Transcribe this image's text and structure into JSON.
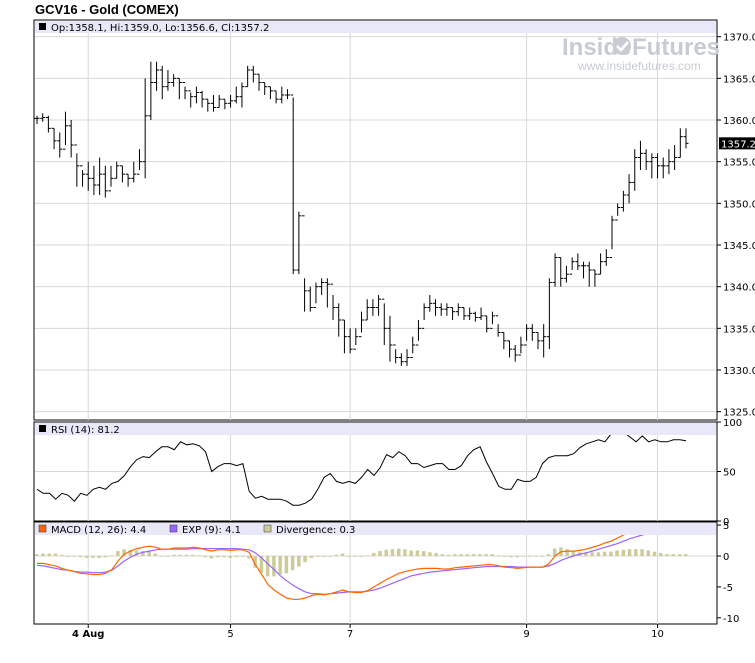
{
  "chart_title": "GCV16 - Gold (COMEX)",
  "watermark": {
    "brand_left": "Inside",
    "brand_right": "Futures",
    "url": "www.insidefutures.com"
  },
  "colors": {
    "price": "#000000",
    "rsi": "#000000",
    "macd": "#ff6600",
    "exp": "#9966ff",
    "divergence": "#cccc99",
    "legend_bg": "#e8e8f8",
    "grid": "#d8d8d8"
  },
  "chart_data": [
    {
      "type": "ohlc",
      "legend": "Op:1358.1, Hi:1359.0, Lo:1356.6, Cl:1357.2",
      "last_value_label": "1357.2",
      "ylim": [
        1324,
        1372
      ],
      "y_ticks": [
        "1325.0",
        "1330.0",
        "1335.0",
        "1340.0",
        "1345.0",
        "1350.0",
        "1355.0",
        "1360.0",
        "1365.0",
        "1370.0"
      ],
      "x_ticks": [
        "4 Aug",
        "5",
        "7",
        "9",
        "10"
      ],
      "close": [
        1360.2,
        1360.3,
        1359.0,
        1357.5,
        1356.5,
        1359.3,
        1357.0,
        1354.5,
        1353.5,
        1353.0,
        1352.2,
        1353.5,
        1351.5,
        1353.0,
        1354.5,
        1353.5,
        1353.0,
        1353.5,
        1355.0,
        1360.5,
        1364.5,
        1366.0,
        1364.0,
        1364.5,
        1365.0,
        1364.5,
        1363.5,
        1362.8,
        1363.3,
        1362.5,
        1362.0,
        1361.5,
        1362.5,
        1362.0,
        1362.3,
        1362.8,
        1364.0,
        1366.0,
        1365.5,
        1364.5,
        1364.0,
        1363.5,
        1362.5,
        1363.0,
        1363.0,
        1342.0,
        1348.5,
        1339.5,
        1337.5,
        1340.0,
        1340.5,
        1340.3,
        1337.5,
        1336.0,
        1334.0,
        1332.5,
        1334.0,
        1336.0,
        1337.5,
        1337.5,
        1338.5,
        1335.0,
        1333.0,
        1331.5,
        1331.0,
        1331.5,
        1333.0,
        1335.0,
        1337.5,
        1338.0,
        1337.5,
        1337.3,
        1337.5,
        1337.0,
        1337.5,
        1336.5,
        1336.8,
        1336.3,
        1336.5,
        1335.0,
        1336.5,
        1334.5,
        1333.5,
        1332.5,
        1331.8,
        1333.0,
        1335.0,
        1334.5,
        1333.5,
        1334.0,
        1340.5,
        1343.5,
        1341.0,
        1341.5,
        1343.0,
        1342.5,
        1342.5,
        1342.0,
        1341.5,
        1343.0,
        1343.5,
        1348.0,
        1349.5,
        1351.0,
        1352.5,
        1355.5,
        1356.0,
        1355.0,
        1355.5,
        1354.5,
        1354.5,
        1355.0,
        1355.5,
        1358.0,
        1357.2
      ],
      "high": [
        1360.5,
        1360.8,
        1360.5,
        1359.0,
        1358.5,
        1361.0,
        1360.0,
        1356.0,
        1354.0,
        1355.0,
        1354.5,
        1355.5,
        1354.5,
        1354.5,
        1355.0,
        1354.5,
        1353.5,
        1355.0,
        1356.5,
        1365.0,
        1367.0,
        1367.0,
        1366.5,
        1366.0,
        1365.5,
        1365.0,
        1364.0,
        1363.3,
        1364.0,
        1363.5,
        1362.5,
        1363.0,
        1363.0,
        1362.5,
        1363.0,
        1364.0,
        1364.5,
        1366.5,
        1366.5,
        1365.5,
        1364.5,
        1364.0,
        1363.5,
        1364.0,
        1363.7,
        1362.7,
        1349.0,
        1341.0,
        1340.0,
        1340.5,
        1341.0,
        1341.0,
        1339.0,
        1338.0,
        1336.0,
        1335.0,
        1335.0,
        1337.0,
        1338.5,
        1338.5,
        1339.0,
        1338.0,
        1336.5,
        1332.5,
        1332.0,
        1332.5,
        1334.0,
        1336.0,
        1338.0,
        1339.0,
        1338.5,
        1338.0,
        1338.0,
        1337.5,
        1338.0,
        1337.5,
        1337.5,
        1337.0,
        1337.5,
        1336.5,
        1337.0,
        1335.5,
        1334.5,
        1333.5,
        1333.0,
        1334.0,
        1335.5,
        1335.5,
        1334.5,
        1335.5,
        1341.0,
        1344.0,
        1343.5,
        1342.5,
        1343.5,
        1344.0,
        1343.0,
        1343.0,
        1342.0,
        1344.0,
        1344.5,
        1348.5,
        1350.0,
        1351.5,
        1353.5,
        1356.5,
        1357.5,
        1356.5,
        1356.0,
        1356.0,
        1355.5,
        1356.5,
        1357.0,
        1359.0,
        1359.0
      ],
      "low": [
        1359.5,
        1359.8,
        1358.5,
        1356.5,
        1355.5,
        1357.0,
        1355.5,
        1352.0,
        1352.0,
        1351.5,
        1351.0,
        1351.0,
        1350.7,
        1352.0,
        1353.0,
        1352.5,
        1352.0,
        1352.5,
        1354.0,
        1353.0,
        1360.0,
        1363.5,
        1362.5,
        1363.5,
        1364.0,
        1362.5,
        1362.5,
        1361.5,
        1362.0,
        1361.5,
        1361.0,
        1361.0,
        1361.5,
        1361.3,
        1361.5,
        1362.0,
        1361.5,
        1364.0,
        1364.5,
        1363.5,
        1363.0,
        1362.5,
        1362.0,
        1362.0,
        1362.5,
        1341.5,
        1341.5,
        1337.0,
        1337.0,
        1338.0,
        1339.0,
        1337.5,
        1336.0,
        1334.0,
        1332.0,
        1332.0,
        1333.0,
        1334.5,
        1336.0,
        1336.5,
        1336.5,
        1333.0,
        1331.0,
        1330.8,
        1330.5,
        1330.5,
        1332.0,
        1333.5,
        1336.0,
        1337.0,
        1336.5,
        1336.5,
        1336.5,
        1336.0,
        1336.5,
        1336.0,
        1336.0,
        1335.8,
        1336.0,
        1334.5,
        1335.5,
        1334.0,
        1332.5,
        1331.5,
        1331.0,
        1332.0,
        1333.5,
        1333.5,
        1332.5,
        1331.5,
        1332.5,
        1340.0,
        1340.0,
        1340.5,
        1342.0,
        1342.0,
        1341.0,
        1340.0,
        1340.0,
        1341.5,
        1342.5,
        1344.5,
        1348.5,
        1349.0,
        1350.0,
        1351.5,
        1354.0,
        1354.0,
        1353.0,
        1353.0,
        1353.0,
        1353.5,
        1354.0,
        1355.5,
        1356.6
      ]
    },
    {
      "type": "line",
      "legend": "RSI (14): 81.2",
      "ylim": [
        0,
        100
      ],
      "y_ticks": [
        "0",
        "50",
        "100"
      ],
      "series": [
        {
          "name": "RSI (14)",
          "values": [
            32,
            28,
            28,
            22,
            28,
            26,
            20,
            28,
            26,
            32,
            34,
            32,
            38,
            40,
            46,
            55,
            62,
            65,
            64,
            70,
            75,
            75,
            72,
            80,
            77,
            78,
            76,
            70,
            50,
            55,
            58,
            58,
            56,
            58,
            30,
            23,
            25,
            22,
            22,
            22,
            20,
            16,
            16,
            18,
            22,
            32,
            44,
            48,
            40,
            38,
            40,
            38,
            44,
            52,
            46,
            54,
            67,
            64,
            70,
            66,
            58,
            58,
            54,
            56,
            58,
            58,
            52,
            52,
            56,
            66,
            72,
            75,
            60,
            48,
            35,
            32,
            32,
            42,
            40,
            40,
            44,
            58,
            64,
            66,
            66,
            66,
            68,
            74,
            78,
            80,
            82,
            80,
            88,
            90,
            90,
            85,
            80,
            86,
            80,
            82,
            80,
            80,
            82,
            82,
            81
          ]
        }
      ]
    },
    {
      "type": "bar+line",
      "legend_items": [
        "MACD (12, 26): 4.4",
        "EXP (9): 4.1",
        "Divergence: 0.3"
      ],
      "ylim": [
        -11,
        5.5
      ],
      "y_ticks": [
        "-10",
        "-5",
        "0",
        "5"
      ],
      "x_ticks": [
        "4 Aug",
        "5",
        "7",
        "9",
        "10"
      ],
      "series": [
        {
          "name": "MACD (12, 26)",
          "values": [
            -1.2,
            -1.2,
            -1.4,
            -1.6,
            -2.0,
            -2.3,
            -2.5,
            -2.8,
            -2.9,
            -3.0,
            -3.0,
            -2.8,
            -2.2,
            -0.8,
            0.3,
            0.8,
            1.2,
            1.4,
            1.6,
            1.4,
            1.1,
            1.1,
            1.3,
            1.3,
            1.3,
            1.4,
            1.3,
            1.0,
            0.8,
            1.0,
            1.0,
            0.9,
            1.0,
            1.0,
            0.6,
            -1.4,
            -3.0,
            -4.6,
            -5.5,
            -6.2,
            -6.8,
            -7.0,
            -7.0,
            -6.8,
            -6.4,
            -6.2,
            -6.3,
            -6.1,
            -5.8,
            -5.5,
            -5.8,
            -5.9,
            -5.9,
            -5.6,
            -5.0,
            -4.4,
            -3.8,
            -3.3,
            -2.8,
            -2.5,
            -2.3,
            -2.1,
            -2.0,
            -2.0,
            -2.0,
            -2.1,
            -2.1,
            -1.9,
            -1.8,
            -1.7,
            -1.6,
            -1.5,
            -1.4,
            -1.4,
            -1.6,
            -1.8,
            -1.9,
            -2.0,
            -1.9,
            -1.8,
            -1.8,
            -1.8,
            -1.3,
            0.0,
            0.7,
            0.8,
            0.8,
            0.9,
            1.1,
            1.4,
            1.7,
            2.1,
            2.4,
            2.9,
            3.4,
            3.9,
            4.2,
            4.5,
            4.6,
            4.6,
            4.5,
            4.4,
            4.4,
            4.4,
            4.4
          ]
        },
        {
          "name": "EXP (9)",
          "values": [
            -1.5,
            -1.6,
            -1.8,
            -2.0,
            -2.2,
            -2.3,
            -2.5,
            -2.6,
            -2.6,
            -2.7,
            -2.7,
            -2.6,
            -2.3,
            -1.6,
            -0.8,
            -0.2,
            0.3,
            0.6,
            0.8,
            1.0,
            1.1,
            1.1,
            1.1,
            1.1,
            1.1,
            1.2,
            1.2,
            1.2,
            1.2,
            1.2,
            1.2,
            1.2,
            1.2,
            1.1,
            1.0,
            0.5,
            -0.3,
            -1.3,
            -2.2,
            -3.2,
            -4.0,
            -4.7,
            -5.3,
            -5.8,
            -6.1,
            -6.1,
            -6.2,
            -6.1,
            -6.0,
            -5.9,
            -5.8,
            -5.8,
            -5.8,
            -5.7,
            -5.5,
            -5.2,
            -4.8,
            -4.4,
            -4.0,
            -3.6,
            -3.2,
            -3.0,
            -2.8,
            -2.6,
            -2.5,
            -2.4,
            -2.3,
            -2.2,
            -2.1,
            -2.0,
            -1.9,
            -1.8,
            -1.7,
            -1.7,
            -1.7,
            -1.7,
            -1.7,
            -1.8,
            -1.8,
            -1.8,
            -1.8,
            -1.8,
            -1.6,
            -1.2,
            -0.7,
            -0.3,
            0.0,
            0.3,
            0.5,
            0.8,
            1.1,
            1.4,
            1.7,
            2.0,
            2.4,
            2.8,
            3.1,
            3.4,
            3.7,
            3.9,
            4.0,
            4.1,
            4.1,
            4.1,
            4.1
          ]
        },
        {
          "name": "Divergence",
          "values": [
            0.3,
            0.4,
            0.4,
            0.4,
            0.2,
            0.0,
            0.0,
            -0.2,
            -0.3,
            -0.3,
            -0.3,
            -0.2,
            0.1,
            0.8,
            1.1,
            1.0,
            0.9,
            0.8,
            0.8,
            0.4,
            0.0,
            0.0,
            0.2,
            0.2,
            0.2,
            0.2,
            0.1,
            -0.2,
            -0.4,
            -0.2,
            -0.2,
            -0.3,
            -0.2,
            -0.1,
            -0.4,
            -1.9,
            -2.7,
            -3.3,
            -3.3,
            -3.0,
            -2.8,
            -2.3,
            -1.7,
            -1.0,
            -0.3,
            -0.1,
            -0.1,
            0.0,
            0.2,
            0.4,
            0.0,
            -0.1,
            -0.1,
            0.1,
            0.5,
            0.8,
            1.0,
            1.1,
            1.2,
            1.1,
            0.9,
            0.9,
            0.8,
            0.6,
            0.5,
            0.3,
            0.2,
            0.3,
            0.3,
            0.3,
            0.3,
            0.3,
            0.3,
            0.3,
            0.1,
            -0.1,
            -0.2,
            -0.2,
            -0.1,
            0.0,
            0.0,
            0.0,
            0.3,
            1.2,
            1.4,
            1.1,
            0.8,
            0.6,
            0.6,
            0.6,
            0.6,
            0.7,
            0.7,
            0.9,
            1.0,
            1.1,
            1.1,
            1.1,
            0.9,
            0.7,
            0.5,
            0.3,
            0.3,
            0.3,
            0.3
          ]
        }
      ]
    }
  ]
}
